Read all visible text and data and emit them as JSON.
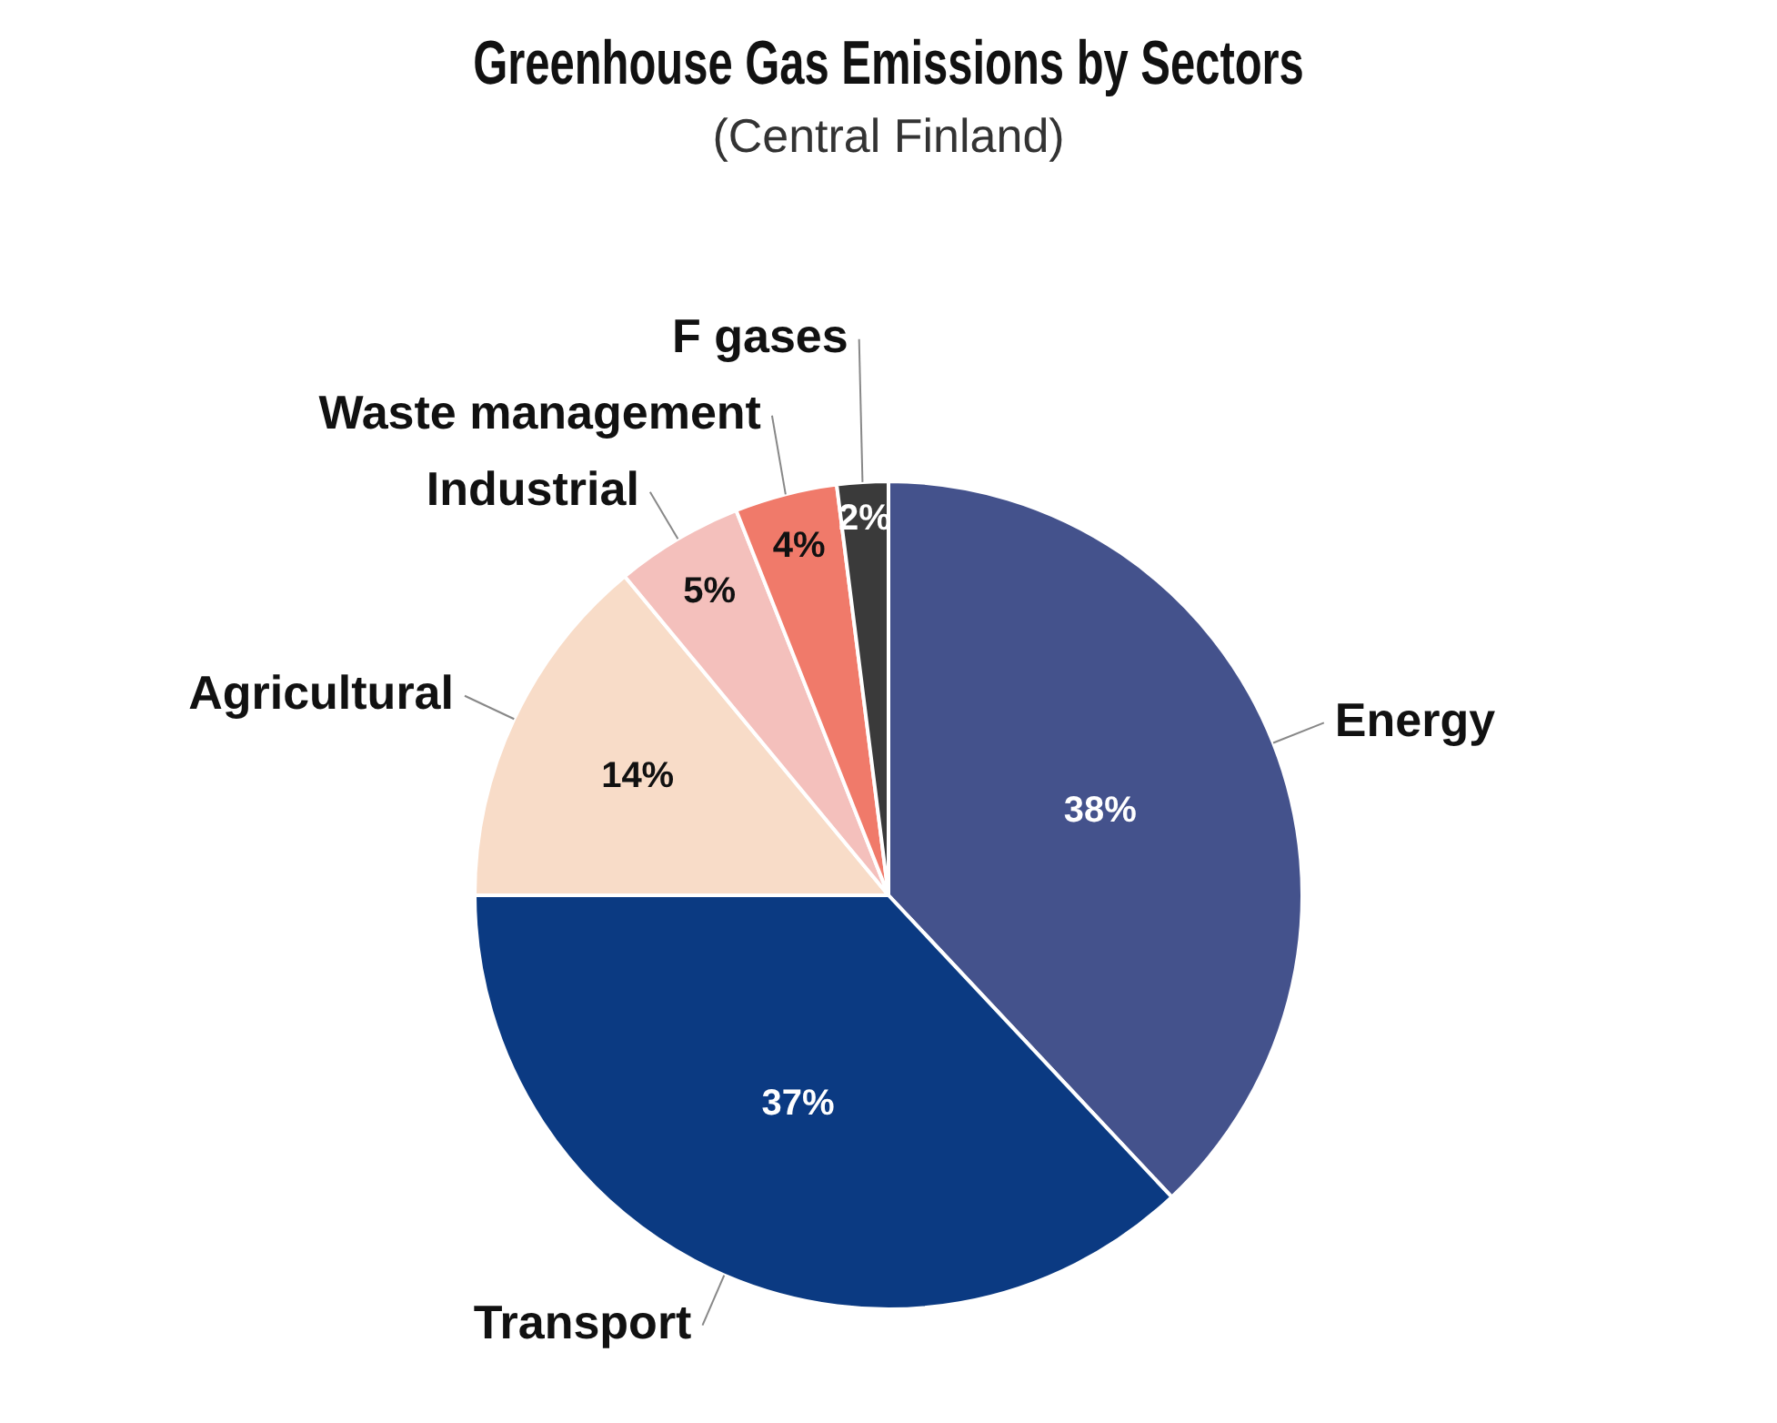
{
  "chart_data": {
    "type": "pie",
    "title": "Greenhouse Gas Emissions by Sectors",
    "subtitle": "(Central Finland)",
    "categories": [
      "Energy",
      "Transport",
      "Agricultural",
      "Industrial",
      "Waste management",
      "F gases"
    ],
    "values": [
      38,
      37,
      14,
      5,
      4,
      2
    ],
    "colors": [
      "#44528c",
      "#0b3a82",
      "#f8dcc8",
      "#f4c0bc",
      "#f07a6a",
      "#3a3a3a"
    ],
    "value_labels": [
      "38%",
      "37%",
      "14%",
      "5%",
      "4%",
      "2%"
    ],
    "legend": false
  }
}
